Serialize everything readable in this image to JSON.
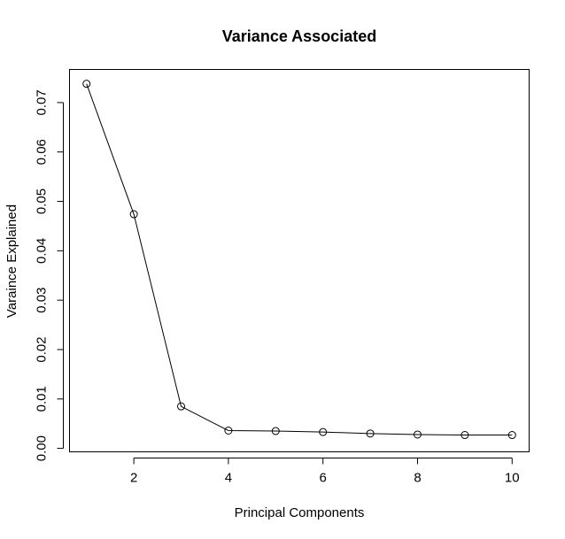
{
  "chart_data": {
    "type": "line",
    "title": "Variance Associated",
    "xlabel": "Principal Components",
    "ylabel": "Varaince Explained",
    "x": [
      1,
      2,
      3,
      4,
      5,
      6,
      7,
      8,
      9,
      10
    ],
    "series": [
      {
        "values": [
          0.0738,
          0.0474,
          0.0085,
          0.0036,
          0.0035,
          0.0033,
          0.003,
          0.0028,
          0.0027,
          0.0027
        ]
      }
    ],
    "xlim": [
      0.64,
      10.36
    ],
    "ylim": [
      -0.0007,
      0.0767
    ],
    "x_ticks": [
      2,
      4,
      6,
      8,
      10
    ],
    "x_tick_labels": [
      "2",
      "4",
      "6",
      "8",
      "10"
    ],
    "y_ticks": [
      0.0,
      0.01,
      0.02,
      0.03,
      0.04,
      0.05,
      0.06,
      0.07
    ],
    "y_tick_labels": [
      "0.00",
      "0.01",
      "0.02",
      "0.03",
      "0.04",
      "0.05",
      "0.06",
      "0.07"
    ],
    "markers": "open-circle",
    "grid": false,
    "legend": "none"
  }
}
